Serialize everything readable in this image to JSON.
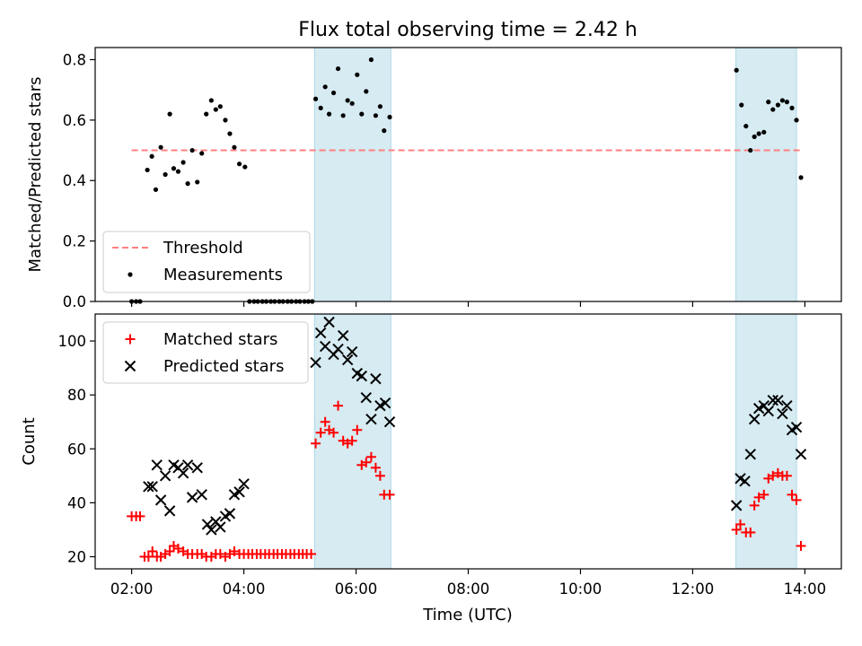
{
  "chart_data": [
    {
      "type": "scatter",
      "panel": "top",
      "title": "Flux total observing time = 2.42 h",
      "ylabel": "Matched/Predicted stars",
      "ylim": [
        0,
        0.84
      ],
      "yticks": [
        0.0,
        0.2,
        0.4,
        0.6,
        0.8
      ],
      "ytick_labels": [
        "0.0",
        "0.2",
        "0.4",
        "0.6",
        "0.8"
      ],
      "legend_position": "lower-left",
      "grid": false,
      "threshold": {
        "name": "Threshold",
        "value": 0.5,
        "x": [
          2.0,
          13.95
        ],
        "color": "#ff7f7f",
        "style": "dashed"
      },
      "measurements": {
        "name": "Measurements",
        "color": "#000000",
        "points": [
          [
            2.0,
            0.0
          ],
          [
            2.08,
            0.0
          ],
          [
            2.15,
            0.0
          ],
          [
            2.28,
            0.435
          ],
          [
            2.36,
            0.48
          ],
          [
            2.43,
            0.37
          ],
          [
            2.52,
            0.51
          ],
          [
            2.6,
            0.42
          ],
          [
            2.68,
            0.62
          ],
          [
            2.75,
            0.44
          ],
          [
            2.83,
            0.43
          ],
          [
            2.92,
            0.46
          ],
          [
            3.0,
            0.39
          ],
          [
            3.08,
            0.5
          ],
          [
            3.17,
            0.395
          ],
          [
            3.25,
            0.49
          ],
          [
            3.33,
            0.62
          ],
          [
            3.42,
            0.665
          ],
          [
            3.5,
            0.635
          ],
          [
            3.58,
            0.645
          ],
          [
            3.67,
            0.6
          ],
          [
            3.75,
            0.555
          ],
          [
            3.83,
            0.51
          ],
          [
            3.92,
            0.455
          ],
          [
            4.02,
            0.445
          ],
          [
            4.1,
            0.0
          ],
          [
            4.18,
            0.0
          ],
          [
            4.25,
            0.0
          ],
          [
            4.33,
            0.0
          ],
          [
            4.4,
            0.0
          ],
          [
            4.48,
            0.0
          ],
          [
            4.55,
            0.0
          ],
          [
            4.63,
            0.0
          ],
          [
            4.7,
            0.0
          ],
          [
            4.78,
            0.0
          ],
          [
            4.85,
            0.0
          ],
          [
            4.93,
            0.0
          ],
          [
            5.0,
            0.0
          ],
          [
            5.08,
            0.0
          ],
          [
            5.15,
            0.0
          ],
          [
            5.22,
            0.0
          ],
          [
            5.28,
            0.67
          ],
          [
            5.37,
            0.64
          ],
          [
            5.45,
            0.71
          ],
          [
            5.52,
            0.62
          ],
          [
            5.6,
            0.69
          ],
          [
            5.68,
            0.77
          ],
          [
            5.77,
            0.615
          ],
          [
            5.85,
            0.665
          ],
          [
            5.93,
            0.655
          ],
          [
            6.02,
            0.75
          ],
          [
            6.1,
            0.62
          ],
          [
            6.18,
            0.695
          ],
          [
            6.27,
            0.8
          ],
          [
            6.35,
            0.615
          ],
          [
            6.43,
            0.645
          ],
          [
            6.5,
            0.565
          ],
          [
            6.6,
            0.61
          ],
          [
            12.78,
            0.765
          ],
          [
            12.87,
            0.65
          ],
          [
            12.95,
            0.58
          ],
          [
            13.03,
            0.5
          ],
          [
            13.1,
            0.545
          ],
          [
            13.18,
            0.555
          ],
          [
            13.27,
            0.56
          ],
          [
            13.35,
            0.66
          ],
          [
            13.43,
            0.635
          ],
          [
            13.52,
            0.65
          ],
          [
            13.6,
            0.665
          ],
          [
            13.68,
            0.66
          ],
          [
            13.77,
            0.64
          ],
          [
            13.85,
            0.6
          ],
          [
            13.93,
            0.41
          ]
        ]
      }
    },
    {
      "type": "scatter",
      "panel": "bottom",
      "ylabel": "Count",
      "xlabel": "Time (UTC)",
      "ylim": [
        15.5,
        110
      ],
      "yticks": [
        20,
        40,
        60,
        80,
        100
      ],
      "ytick_labels": [
        "20",
        "40",
        "60",
        "80",
        "100"
      ],
      "xlim": [
        1.35,
        14.65
      ],
      "xticks": [
        2,
        4,
        6,
        8,
        10,
        12,
        14
      ],
      "xtick_labels": [
        "02:00",
        "04:00",
        "06:00",
        "08:00",
        "10:00",
        "12:00",
        "14:00"
      ],
      "legend_position": "upper-left",
      "grid": false,
      "series": [
        {
          "name": "Matched stars",
          "marker": "plus",
          "color": "#ff0000",
          "points": [
            [
              2.0,
              35
            ],
            [
              2.08,
              35
            ],
            [
              2.15,
              35
            ],
            [
              2.23,
              20
            ],
            [
              2.3,
              20
            ],
            [
              2.37,
              22
            ],
            [
              2.45,
              20
            ],
            [
              2.52,
              20
            ],
            [
              2.6,
              21
            ],
            [
              2.68,
              22
            ],
            [
              2.75,
              24
            ],
            [
              2.83,
              23
            ],
            [
              2.92,
              22
            ],
            [
              3.0,
              21
            ],
            [
              3.08,
              21
            ],
            [
              3.17,
              21
            ],
            [
              3.25,
              21
            ],
            [
              3.33,
              20
            ],
            [
              3.42,
              20
            ],
            [
              3.5,
              21
            ],
            [
              3.58,
              21
            ],
            [
              3.67,
              20
            ],
            [
              3.75,
              21
            ],
            [
              3.83,
              22
            ],
            [
              3.92,
              21
            ],
            [
              4.0,
              21
            ],
            [
              4.08,
              21
            ],
            [
              4.15,
              21
            ],
            [
              4.23,
              21
            ],
            [
              4.3,
              21
            ],
            [
              4.38,
              21
            ],
            [
              4.45,
              21
            ],
            [
              4.53,
              21
            ],
            [
              4.6,
              21
            ],
            [
              4.68,
              21
            ],
            [
              4.75,
              21
            ],
            [
              4.83,
              21
            ],
            [
              4.9,
              21
            ],
            [
              4.98,
              21
            ],
            [
              5.05,
              21
            ],
            [
              5.12,
              21
            ],
            [
              5.2,
              21
            ],
            [
              5.28,
              62
            ],
            [
              5.37,
              66
            ],
            [
              5.45,
              70
            ],
            [
              5.52,
              67
            ],
            [
              5.6,
              66
            ],
            [
              5.68,
              76
            ],
            [
              5.77,
              63
            ],
            [
              5.85,
              62
            ],
            [
              5.93,
              63
            ],
            [
              6.02,
              67
            ],
            [
              6.1,
              54
            ],
            [
              6.18,
              55
            ],
            [
              6.27,
              57
            ],
            [
              6.35,
              53
            ],
            [
              6.43,
              50
            ],
            [
              6.5,
              43
            ],
            [
              6.6,
              43
            ],
            [
              12.78,
              30
            ],
            [
              12.85,
              32
            ],
            [
              12.95,
              29
            ],
            [
              13.03,
              29
            ],
            [
              13.1,
              39
            ],
            [
              13.18,
              42
            ],
            [
              13.27,
              43
            ],
            [
              13.35,
              49
            ],
            [
              13.43,
              50
            ],
            [
              13.52,
              51
            ],
            [
              13.6,
              50
            ],
            [
              13.68,
              50
            ],
            [
              13.77,
              43
            ],
            [
              13.85,
              41
            ],
            [
              13.93,
              24
            ]
          ]
        },
        {
          "name": "Predicted stars",
          "marker": "x",
          "color": "#000000",
          "points": [
            [
              2.3,
              46
            ],
            [
              2.37,
              46
            ],
            [
              2.45,
              54
            ],
            [
              2.52,
              41
            ],
            [
              2.6,
              50
            ],
            [
              2.68,
              37
            ],
            [
              2.75,
              54
            ],
            [
              2.83,
              53
            ],
            [
              2.92,
              51
            ],
            [
              3.0,
              54
            ],
            [
              3.08,
              42
            ],
            [
              3.17,
              53
            ],
            [
              3.25,
              43
            ],
            [
              3.35,
              32
            ],
            [
              3.42,
              30
            ],
            [
              3.5,
              33
            ],
            [
              3.58,
              31
            ],
            [
              3.67,
              35
            ],
            [
              3.75,
              36
            ],
            [
              3.83,
              43
            ],
            [
              3.92,
              44
            ],
            [
              4.0,
              47
            ],
            [
              5.28,
              92
            ],
            [
              5.37,
              103
            ],
            [
              5.45,
              98
            ],
            [
              5.52,
              107
            ],
            [
              5.6,
              95
            ],
            [
              5.68,
              97
            ],
            [
              5.77,
              102
            ],
            [
              5.85,
              93
            ],
            [
              5.93,
              96
            ],
            [
              6.02,
              88
            ],
            [
              6.1,
              87
            ],
            [
              6.18,
              79
            ],
            [
              6.27,
              71
            ],
            [
              6.35,
              86
            ],
            [
              6.43,
              76
            ],
            [
              6.52,
              77
            ],
            [
              6.6,
              70
            ],
            [
              12.78,
              39
            ],
            [
              12.85,
              49
            ],
            [
              12.93,
              48
            ],
            [
              13.03,
              58
            ],
            [
              13.1,
              71
            ],
            [
              13.18,
              75
            ],
            [
              13.27,
              76
            ],
            [
              13.35,
              74
            ],
            [
              13.43,
              78
            ],
            [
              13.52,
              78
            ],
            [
              13.6,
              73
            ],
            [
              13.68,
              76
            ],
            [
              13.77,
              67
            ],
            [
              13.85,
              68
            ],
            [
              13.93,
              58
            ]
          ]
        }
      ]
    }
  ],
  "highlight_spans": {
    "color": "#add8e6",
    "opacity": 0.5,
    "ranges": [
      [
        5.26,
        6.62
      ],
      [
        12.77,
        13.85
      ]
    ]
  }
}
